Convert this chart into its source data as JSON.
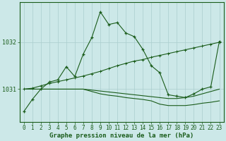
{
  "bg_color": "#cce8e8",
  "grid_color": "#aacece",
  "line_color": "#1a5c1a",
  "xlabel": "Graphe pression niveau de la mer (hPa)",
  "xlabel_fontsize": 6.5,
  "tick_fontsize": 5.5,
  "ytick_fontsize": 6.0,
  "ylim": [
    1030.3,
    1032.85
  ],
  "xlim": [
    -0.5,
    23.5
  ],
  "yticks": [
    1031,
    1032
  ],
  "xticks": [
    0,
    1,
    2,
    3,
    4,
    5,
    6,
    7,
    8,
    9,
    10,
    11,
    12,
    13,
    14,
    15,
    16,
    17,
    18,
    19,
    20,
    21,
    22,
    23
  ],
  "series1": [
    1030.52,
    1030.78,
    1031.0,
    1031.15,
    1031.2,
    1031.48,
    1031.27,
    1031.75,
    1032.1,
    1032.65,
    1032.38,
    1032.42,
    1032.2,
    1032.12,
    1031.85,
    1031.5,
    1031.35,
    1030.88,
    1030.85,
    1030.82,
    1030.9,
    1031.0,
    1031.05,
    1032.02
  ],
  "series2": [
    1031.0,
    1031.0,
    1031.0,
    1031.0,
    1031.0,
    1031.0,
    1031.0,
    1031.0,
    1030.95,
    1030.9,
    1030.87,
    1030.85,
    1030.82,
    1030.8,
    1030.78,
    1030.75,
    1030.68,
    1030.65,
    1030.65,
    1030.65,
    1030.67,
    1030.7,
    1030.72,
    1030.75
  ],
  "series3": [
    1031.0,
    1031.02,
    1031.07,
    1031.12,
    1031.16,
    1031.2,
    1031.24,
    1031.28,
    1031.33,
    1031.38,
    1031.44,
    1031.5,
    1031.55,
    1031.6,
    1031.63,
    1031.68,
    1031.72,
    1031.76,
    1031.8,
    1031.84,
    1031.88,
    1031.92,
    1031.96,
    1032.0
  ],
  "series4": [
    1031.0,
    1031.0,
    1031.0,
    1031.0,
    1031.0,
    1031.0,
    1031.0,
    1031.0,
    1030.98,
    1030.96,
    1030.94,
    1030.92,
    1030.9,
    1030.88,
    1030.86,
    1030.84,
    1030.82,
    1030.8,
    1030.8,
    1030.82,
    1030.85,
    1030.9,
    1030.95,
    1031.0
  ]
}
